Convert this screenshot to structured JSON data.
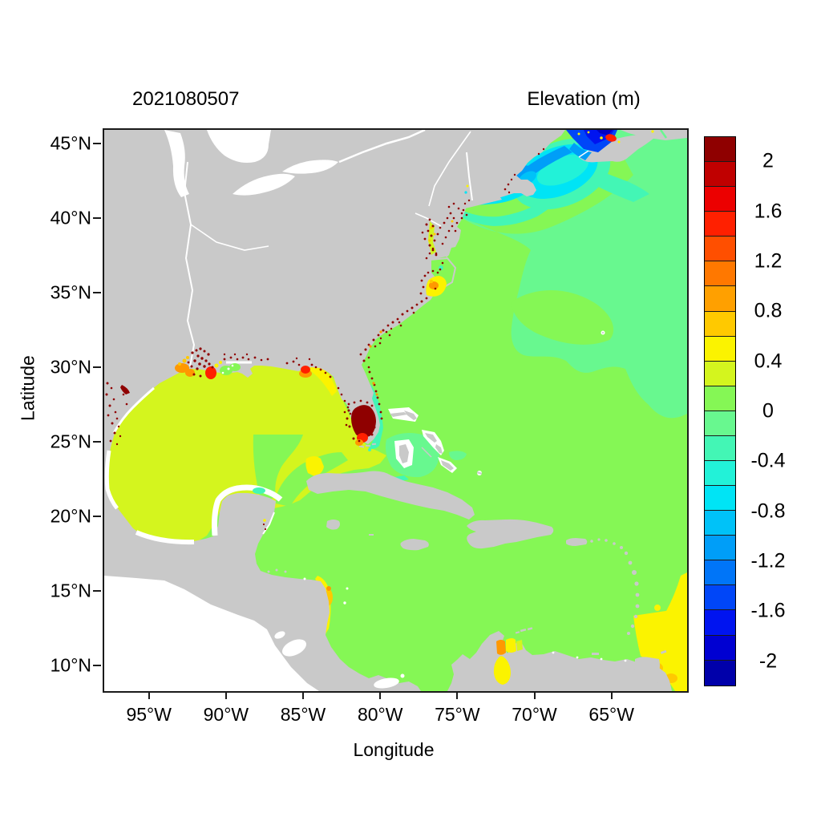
{
  "titles": {
    "date": "2021080507",
    "colorbar": "Elevation (m)"
  },
  "axes": {
    "x": {
      "label": "Longitude",
      "tick_labels": [
        "95°W",
        "90°W",
        "85°W",
        "80°W",
        "75°W",
        "70°W",
        "65°W"
      ],
      "tick_values": [
        -95,
        -90,
        -85,
        -80,
        -75,
        -70,
        -65
      ],
      "range": [
        -98.0,
        -60.2
      ]
    },
    "y": {
      "label": "Latitude",
      "tick_labels": [
        "45°N",
        "40°N",
        "35°N",
        "30°N",
        "25°N",
        "20°N",
        "15°N",
        "10°N"
      ],
      "tick_values": [
        45,
        40,
        35,
        30,
        25,
        20,
        15,
        10
      ],
      "range": [
        8.4,
        46.0
      ]
    }
  },
  "colorbar": {
    "title": "Elevation (m)",
    "min": -2.2,
    "max": 2.2,
    "cell_step": 0.2,
    "n_cells": 22,
    "tick_labels": [
      "2",
      "1.6",
      "1.2",
      "0.8",
      "0.4",
      "0",
      "-0.4",
      "-0.8",
      "-1.2",
      "-1.6",
      "-2"
    ],
    "tick_values": [
      2,
      1.6,
      1.2,
      0.8,
      0.4,
      0,
      -0.4,
      -0.8,
      -1.2,
      -1.6,
      -2
    ],
    "colors_top_to_bottom": [
      "#8F0000",
      "#C00000",
      "#EC0000",
      "#FF2000",
      "#FF4F00",
      "#FF7800",
      "#FFA000",
      "#FFC900",
      "#FBF300",
      "#D4F51E",
      "#85F755",
      "#68F88F",
      "#43F6B5",
      "#22F2D8",
      "#00E4F5",
      "#00C2F8",
      "#009EF8",
      "#0075F8",
      "#0046F8",
      "#0014F0",
      "#0000D2",
      "#0000AA"
    ]
  },
  "chart_data": {
    "type": "heatmap",
    "title": "Elevation (m) field, model output 2021080507",
    "projection": "longitude-latitude",
    "extent": {
      "lon": [
        -98.0,
        -60.2
      ],
      "lat": [
        8.4,
        46.0
      ]
    },
    "land_color": "#c9c9c9",
    "no_data_color": "#ffffff",
    "units": "m",
    "features": [
      {
        "region": "Western Atlantic and Caribbean basin",
        "value_m": "0 to 0.2",
        "color": "#85F755"
      },
      {
        "region": "Gulf of Mexico basin",
        "value_m": "0.2 to 0.4",
        "color": "#D4F51E"
      },
      {
        "region": "Offshore mid-Atlantic / NE of Bahamas / south of Nova Scotia",
        "value_m": "-0.2 to 0",
        "color": "#68F88F"
      },
      {
        "region": "Shelf south of Long Island and around Georges Bank",
        "value_m": "-0.4 to -0.2",
        "color": "#43F6B5"
      },
      {
        "region": "Gulf of Maine interior",
        "value_m": "-0.8 to -0.4",
        "color": "#00E4F5"
      },
      {
        "region": "Long Island Sound / southern New England bays",
        "value_m": "-1.0 to -0.6",
        "color": "#00C2F8"
      },
      {
        "region": "Bay of Fundy",
        "value_m": "-1.2 to -2.2",
        "color": "#0046F8"
      },
      {
        "region": "Head of Bay of Fundy (Minas Basin)",
        "value_m": "1.4 to 1.8 (local red spot)",
        "color": "#FF2000"
      },
      {
        "region": "South Florida / Biscayne area blob",
        "value_m": "> 2.2",
        "color": "#8F0000"
      },
      {
        "region": "South Florida blob southern fringe",
        "value_m": "0.8 to 1.6",
        "color": "#FF9800"
      },
      {
        "region": "Coastal speckles: Texas, Louisiana, Georgia-Carolinas, Chesapeake, Maine",
        "value_m": "> 2",
        "color": "#8F0000"
      },
      {
        "region": "Louisiana delta and Apalachee Bay patches",
        "value_m": "0.8 to 1.6",
        "color": "#FF7800"
      },
      {
        "region": "Cape Lookout (NC) patch",
        "value_m": "0.6 to 1.0",
        "color": "#FFC900"
      },
      {
        "region": "West Florida shelf band",
        "value_m": "0.4 to 0.6",
        "color": "#FBF300"
      },
      {
        "region": "NE Yucatan coastal patch",
        "value_m": "-0.4 to -0.2",
        "color": "#43F6B5"
      },
      {
        "region": "Nicaragua coast band",
        "value_m": "0.4 to 0.8",
        "color": "#FBF300"
      },
      {
        "region": "Gulf of Venezuela spot and Lake Maracaibo",
        "value_m": "0.4 to 1.0",
        "color": "#FFC900"
      },
      {
        "region": "Atlantic SE of Trinidad / map SE corner",
        "value_m": "0.4 to 0.8",
        "color": "#FBF300"
      },
      {
        "region": "Bahama banks, Yucatan and Campeche nearshore fringe",
        "value_m": "no data",
        "color": "#ffffff"
      },
      {
        "region": "Pacific Ocean corner (outside model domain)",
        "value_m": "no data",
        "color": "#ffffff"
      }
    ]
  }
}
